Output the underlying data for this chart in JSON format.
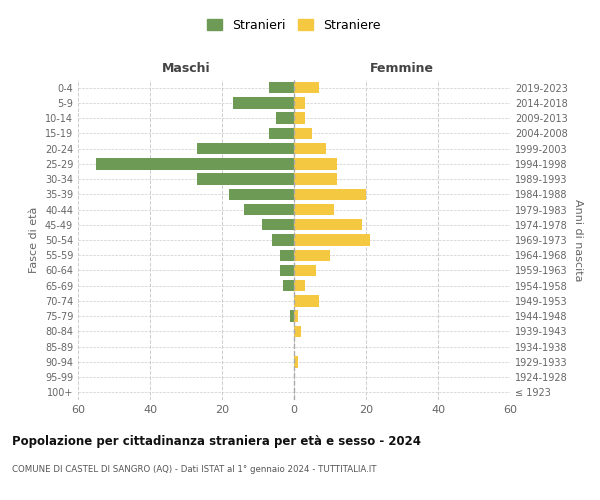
{
  "age_groups": [
    "100+",
    "95-99",
    "90-94",
    "85-89",
    "80-84",
    "75-79",
    "70-74",
    "65-69",
    "60-64",
    "55-59",
    "50-54",
    "45-49",
    "40-44",
    "35-39",
    "30-34",
    "25-29",
    "20-24",
    "15-19",
    "10-14",
    "5-9",
    "0-4"
  ],
  "birth_years": [
    "≤ 1923",
    "1924-1928",
    "1929-1933",
    "1934-1938",
    "1939-1943",
    "1944-1948",
    "1949-1953",
    "1954-1958",
    "1959-1963",
    "1964-1968",
    "1969-1973",
    "1974-1978",
    "1979-1983",
    "1984-1988",
    "1989-1993",
    "1994-1998",
    "1999-2003",
    "2004-2008",
    "2009-2013",
    "2014-2018",
    "2019-2023"
  ],
  "maschi": [
    0,
    0,
    0,
    0,
    0,
    1,
    0,
    3,
    4,
    4,
    6,
    9,
    14,
    18,
    27,
    55,
    27,
    7,
    5,
    17,
    7
  ],
  "femmine": [
    0,
    0,
    1,
    0,
    2,
    1,
    7,
    3,
    6,
    10,
    21,
    19,
    11,
    20,
    12,
    12,
    9,
    5,
    3,
    3,
    7
  ],
  "maschi_color": "#6d9b56",
  "femmine_color": "#f5c842",
  "title": "Popolazione per cittadinanza straniera per età e sesso - 2024",
  "subtitle": "COMUNE DI CASTEL DI SANGRO (AQ) - Dati ISTAT al 1° gennaio 2024 - TUTTITALIA.IT",
  "xlabel_left": "Maschi",
  "xlabel_right": "Femmine",
  "ylabel_left": "Fasce di età",
  "ylabel_right": "Anni di nascita",
  "legend_maschi": "Stranieri",
  "legend_femmine": "Straniere",
  "xlim": 60,
  "background_color": "#ffffff",
  "grid_color": "#cccccc"
}
